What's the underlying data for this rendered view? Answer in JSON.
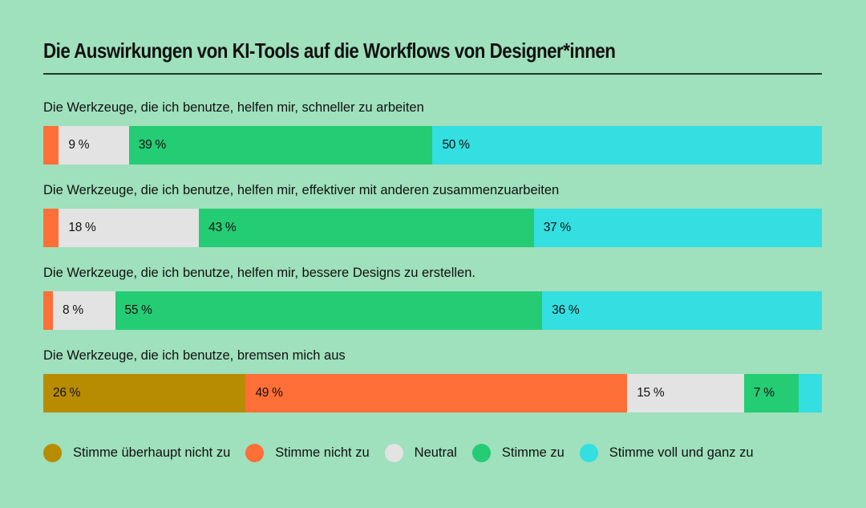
{
  "chart_data": {
    "type": "bar",
    "orientation": "horizontal",
    "stacked": true,
    "normalized": true,
    "title": "Die Auswirkungen von KI-Tools auf die Workflows von Designer*innen",
    "xlabel": "",
    "ylabel": "",
    "xlim": [
      0,
      100
    ],
    "grid": false,
    "legend_position": "bottom",
    "categories": [
      "Die Werkzeuge, die ich benutze, helfen mir, schneller zu arbeiten",
      "Die Werkzeuge, die ich benutze, helfen mir, effektiver mit anderen zusammenzuarbeiten",
      "Die Werkzeuge, die ich benutze, helfen mir, bessere Designs zu erstellen.",
      "Die Werkzeuge, die ich benutze, bremsen mich aus"
    ],
    "series": [
      {
        "name": "Stimme überhaupt nicht zu",
        "color": "#b88c00",
        "values": [
          0,
          0,
          0,
          26
        ],
        "labels": [
          "",
          "",
          "",
          "26 %"
        ]
      },
      {
        "name": "Stimme nicht zu",
        "color": "#ff6f37",
        "values": [
          2,
          2,
          1,
          49
        ],
        "labels": [
          "",
          "",
          "",
          "49 %"
        ]
      },
      {
        "name": "Neutral",
        "color": "#e3e3e3",
        "values": [
          9,
          18,
          8,
          15
        ],
        "labels": [
          "9 %",
          "18 %",
          "8 %",
          "15 %"
        ]
      },
      {
        "name": "Stimme zu",
        "color": "#24cc73",
        "values": [
          39,
          43,
          55,
          7
        ],
        "labels": [
          "39 %",
          "43 %",
          "55 %",
          "7 %"
        ]
      },
      {
        "name": "Stimme voll und ganz zu",
        "color": "#33dfe0",
        "values": [
          50,
          37,
          36,
          3
        ],
        "labels": [
          "50 %",
          "37 %",
          "36 %",
          ""
        ]
      }
    ]
  },
  "header": {
    "title": "Die Auswirkungen von KI-Tools auf die Workflows von Designer*innen"
  },
  "questions": [
    {
      "label": "Die Werkzeuge, die ich benutze, helfen mir, schneller zu arbeiten",
      "segments": [
        {
          "key": "stimme-nicht-zu",
          "value": 2,
          "label": "",
          "color": "#ff6f37"
        },
        {
          "key": "neutral",
          "value": 9,
          "label": "9 %",
          "color": "#e3e3e3"
        },
        {
          "key": "stimme-zu",
          "value": 39,
          "label": "39 %",
          "color": "#24cc73"
        },
        {
          "key": "stimme-voll-zu",
          "value": 50,
          "label": "50 %",
          "color": "#33dfe0"
        }
      ]
    },
    {
      "label": "Die Werkzeuge, die ich benutze, helfen mir, effektiver mit anderen zusammenzuarbeiten",
      "segments": [
        {
          "key": "stimme-nicht-zu",
          "value": 2,
          "label": "",
          "color": "#ff6f37"
        },
        {
          "key": "neutral",
          "value": 18,
          "label": "18 %",
          "color": "#e3e3e3"
        },
        {
          "key": "stimme-zu",
          "value": 43,
          "label": "43 %",
          "color": "#24cc73"
        },
        {
          "key": "stimme-voll-zu",
          "value": 37,
          "label": "37 %",
          "color": "#33dfe0"
        }
      ]
    },
    {
      "label": "Die Werkzeuge, die ich benutze, helfen mir, bessere Designs zu erstellen.",
      "segments": [
        {
          "key": "stimme-nicht-zu",
          "value": 1,
          "label": "",
          "color": "#ff6f37"
        },
        {
          "key": "neutral",
          "value": 8,
          "label": "8 %",
          "color": "#e3e3e3"
        },
        {
          "key": "stimme-zu",
          "value": 55,
          "label": "55 %",
          "color": "#24cc73"
        },
        {
          "key": "stimme-voll-zu",
          "value": 36,
          "label": "36 %",
          "color": "#33dfe0"
        }
      ]
    },
    {
      "label": "Die Werkzeuge, die ich benutze, bremsen mich aus",
      "segments": [
        {
          "key": "stimme-ueberhaupt-nicht-zu",
          "value": 26,
          "label": "26 %",
          "color": "#b88c00"
        },
        {
          "key": "stimme-nicht-zu",
          "value": 49,
          "label": "49 %",
          "color": "#ff6f37"
        },
        {
          "key": "neutral",
          "value": 15,
          "label": "15 %",
          "color": "#e3e3e3"
        },
        {
          "key": "stimme-zu",
          "value": 7,
          "label": "7 %",
          "color": "#24cc73"
        },
        {
          "key": "stimme-voll-zu",
          "value": 3,
          "label": "",
          "color": "#33dfe0"
        }
      ]
    }
  ],
  "legend": {
    "items": [
      {
        "label": "Stimme überhaupt nicht zu",
        "color": "#b88c00"
      },
      {
        "label": "Stimme nicht zu",
        "color": "#ff6f37"
      },
      {
        "label": "Neutral",
        "color": "#e3e3e3"
      },
      {
        "label": "Stimme zu",
        "color": "#24cc73"
      },
      {
        "label": "Stimme voll und ganz zu",
        "color": "#33dfe0"
      }
    ]
  },
  "colors": {
    "background": "#9fe0bd",
    "rule": "#1f3a2c",
    "text": "#111111"
  }
}
